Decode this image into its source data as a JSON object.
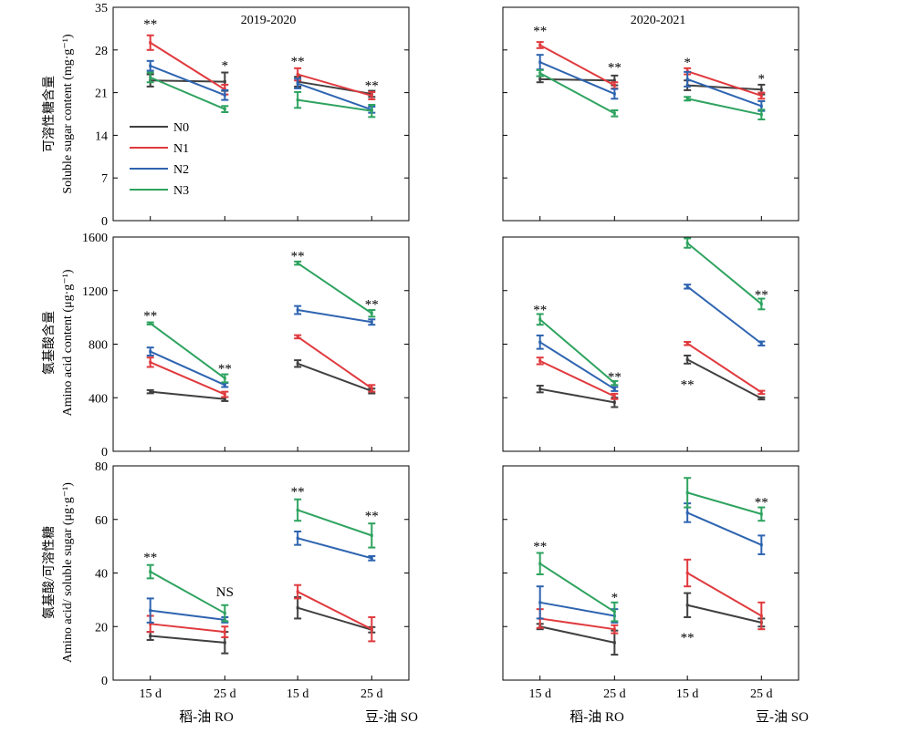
{
  "colors": {
    "N0": "#404040",
    "N1": "#e03a3e",
    "N2": "#2e64b0",
    "N3": "#2ea35f"
  },
  "legend": [
    {
      "name": "N0",
      "color": "#404040"
    },
    {
      "name": "N1",
      "color": "#e03a3e"
    },
    {
      "name": "N2",
      "color": "#2e64b0"
    },
    {
      "name": "N3",
      "color": "#2ea35f"
    }
  ],
  "x_tick_labels": [
    "15 d",
    "25 d",
    "15 d",
    "25 d"
  ],
  "group_labels": [
    "稻-油 RO",
    "豆-油 SO"
  ],
  "y_labels": [
    {
      "cn": "可溶性糖含量",
      "en": "Soluble sugar content (mg·g⁻¹)"
    },
    {
      "cn": "氨基酸含量",
      "en": "Amino acid content (μg·g⁻¹)"
    },
    {
      "cn": "氨基酸/可溶性糖",
      "en": "Amino acid/ soluble sugar (μg·g⁻¹)"
    }
  ],
  "chart_data": [
    {
      "type": "line",
      "row": 0,
      "col": 0,
      "title": "2019-2020",
      "ylim": [
        0,
        35
      ],
      "yticks": [
        0,
        7,
        14,
        21,
        28,
        35
      ],
      "show_yticklabels": true,
      "show_legend": true,
      "categories": [
        "15 d",
        "25 d",
        "15 d",
        "25 d"
      ],
      "series": [
        {
          "name": "N0",
          "values": [
            23.0,
            22.8,
            22.8,
            20.8
          ],
          "err": [
            1.0,
            1.5,
            0.8,
            0.5
          ]
        },
        {
          "name": "N1",
          "values": [
            29.2,
            21.5,
            24.0,
            20.5
          ],
          "err": [
            1.2,
            0.8,
            1.0,
            0.6
          ]
        },
        {
          "name": "N2",
          "values": [
            25.4,
            20.6,
            22.5,
            18.2
          ],
          "err": [
            0.8,
            0.8,
            0.8,
            0.5
          ]
        },
        {
          "name": "N3",
          "values": [
            23.5,
            18.3,
            19.8,
            18.0
          ],
          "err": [
            0.8,
            0.5,
            1.3,
            1.0
          ]
        }
      ],
      "annotations": [
        {
          "text": "**",
          "x": 0,
          "y": 32.3
        },
        {
          "text": "*",
          "x": 1,
          "y": 25.5
        },
        {
          "text": "**",
          "x": 2,
          "y": 26.2
        },
        {
          "text": "**",
          "x": 3,
          "y": 22.2
        }
      ]
    },
    {
      "type": "line",
      "row": 0,
      "col": 1,
      "title": "2020-2021",
      "ylim": [
        0,
        35
      ],
      "yticks": [
        0,
        7,
        14,
        21,
        28,
        35
      ],
      "show_yticklabels": false,
      "show_legend": false,
      "categories": [
        "15 d",
        "25 d",
        "15 d",
        "25 d"
      ],
      "series": [
        {
          "name": "N0",
          "values": [
            23.2,
            23.0,
            22.2,
            21.5
          ],
          "err": [
            0.5,
            0.8,
            0.8,
            0.8
          ]
        },
        {
          "name": "N1",
          "values": [
            28.8,
            22.2,
            24.5,
            20.5
          ],
          "err": [
            0.5,
            0.5,
            0.5,
            0.5
          ]
        },
        {
          "name": "N2",
          "values": [
            26.0,
            20.8,
            23.2,
            18.8
          ],
          "err": [
            1.2,
            0.8,
            1.2,
            0.8
          ]
        },
        {
          "name": "N3",
          "values": [
            24.2,
            17.6,
            20.0,
            17.4
          ],
          "err": [
            0.5,
            0.5,
            0.3,
            0.8
          ]
        }
      ],
      "annotations": [
        {
          "text": "**",
          "x": 0,
          "y": 31.2
        },
        {
          "text": "**",
          "x": 1,
          "y": 25.2
        },
        {
          "text": "*",
          "x": 2,
          "y": 26.0
        },
        {
          "text": "*",
          "x": 3,
          "y": 23.3
        }
      ]
    },
    {
      "type": "line",
      "row": 1,
      "col": 0,
      "ylim": [
        0,
        1600
      ],
      "yticks": [
        0,
        400,
        800,
        1200,
        1600
      ],
      "show_yticklabels": true,
      "categories": [
        "15 d",
        "25 d",
        "15 d",
        "25 d"
      ],
      "series": [
        {
          "name": "N0",
          "values": [
            445,
            390,
            655,
            450
          ],
          "err": [
            12,
            15,
            25,
            18
          ]
        },
        {
          "name": "N1",
          "values": [
            665,
            425,
            855,
            470
          ],
          "err": [
            35,
            20,
            12,
            25
          ]
        },
        {
          "name": "N2",
          "values": [
            745,
            495,
            1055,
            965
          ],
          "err": [
            30,
            15,
            30,
            20
          ]
        },
        {
          "name": "N3",
          "values": [
            955,
            545,
            1405,
            1030
          ],
          "err": [
            8,
            30,
            12,
            25
          ]
        }
      ],
      "annotations": [
        {
          "text": "**",
          "x": 0,
          "y": 1015
        },
        {
          "text": "**",
          "x": 1,
          "y": 620
        },
        {
          "text": "**",
          "x": 2,
          "y": 1460
        },
        {
          "text": "**",
          "x": 3,
          "y": 1100
        }
      ]
    },
    {
      "type": "line",
      "row": 1,
      "col": 1,
      "ylim": [
        0,
        1600
      ],
      "yticks": [
        0,
        400,
        800,
        1200,
        1600
      ],
      "show_yticklabels": false,
      "categories": [
        "15 d",
        "25 d",
        "15 d",
        "25 d"
      ],
      "series": [
        {
          "name": "N0",
          "values": [
            465,
            365,
            685,
            395
          ],
          "err": [
            25,
            35,
            30,
            8
          ]
        },
        {
          "name": "N1",
          "values": [
            675,
            410,
            805,
            440
          ],
          "err": [
            25,
            20,
            12,
            12
          ]
        },
        {
          "name": "N2",
          "values": [
            815,
            465,
            1230,
            805
          ],
          "err": [
            50,
            15,
            15,
            15
          ]
        },
        {
          "name": "N3",
          "values": [
            985,
            510,
            1555,
            1100
          ],
          "err": [
            40,
            15,
            35,
            40
          ]
        }
      ],
      "annotations": [
        {
          "text": "**",
          "x": 0,
          "y": 1060
        },
        {
          "text": "**",
          "x": 1,
          "y": 560
        },
        {
          "text": "**",
          "x": 2,
          "y": 500
        },
        {
          "text": "**",
          "x": 3,
          "y": 1170
        }
      ]
    },
    {
      "type": "line",
      "row": 2,
      "col": 0,
      "ylim": [
        0,
        80
      ],
      "yticks": [
        0,
        20,
        40,
        60,
        80
      ],
      "show_yticklabels": true,
      "categories": [
        "15 d",
        "25 d",
        "15 d",
        "25 d"
      ],
      "series": [
        {
          "name": "N0",
          "values": [
            16.5,
            14.0,
            27.0,
            18.8
          ],
          "err": [
            1.5,
            4.0,
            4.0,
            1.0
          ]
        },
        {
          "name": "N1",
          "values": [
            21.0,
            18.0,
            33.0,
            19.0
          ],
          "err": [
            3.0,
            2.0,
            2.5,
            4.5
          ]
        },
        {
          "name": "N2",
          "values": [
            26.0,
            22.5,
            53.0,
            45.5
          ],
          "err": [
            4.5,
            1.0,
            2.5,
            0.8
          ]
        },
        {
          "name": "N3",
          "values": [
            40.5,
            25.0,
            63.5,
            54.0
          ],
          "err": [
            2.5,
            3.0,
            4.0,
            4.5
          ]
        }
      ],
      "annotations": [
        {
          "text": "**",
          "x": 0,
          "y": 46.0
        },
        {
          "text": "NS",
          "x": 1,
          "y": 33.0
        },
        {
          "text": "**",
          "x": 2,
          "y": 70.5
        },
        {
          "text": "**",
          "x": 3,
          "y": 61.5
        }
      ]
    },
    {
      "type": "line",
      "row": 2,
      "col": 1,
      "ylim": [
        0,
        80
      ],
      "yticks": [
        0,
        20,
        40,
        60,
        80
      ],
      "show_yticklabels": false,
      "categories": [
        "15 d",
        "25 d",
        "15 d",
        "25 d"
      ],
      "series": [
        {
          "name": "N0",
          "values": [
            20.0,
            14.0,
            28.0,
            21.5
          ],
          "err": [
            1.0,
            4.5,
            4.5,
            1.5
          ]
        },
        {
          "name": "N1",
          "values": [
            23.0,
            19.0,
            40.0,
            24.0
          ],
          "err": [
            3.5,
            1.5,
            5.0,
            5.0
          ]
        },
        {
          "name": "N2",
          "values": [
            29.0,
            24.0,
            62.5,
            50.5
          ],
          "err": [
            6.0,
            2.5,
            3.5,
            3.5
          ]
        },
        {
          "name": "N3",
          "values": [
            43.5,
            25.5,
            70.0,
            62.0
          ],
          "err": [
            4.0,
            3.5,
            5.5,
            2.5
          ]
        }
      ],
      "annotations": [
        {
          "text": "**",
          "x": 0,
          "y": 50.0
        },
        {
          "text": "*",
          "x": 1,
          "y": 31.0
        },
        {
          "text": "**",
          "x": 2,
          "y": 16.0
        },
        {
          "text": "**",
          "x": 3,
          "y": 66.5
        }
      ]
    }
  ]
}
